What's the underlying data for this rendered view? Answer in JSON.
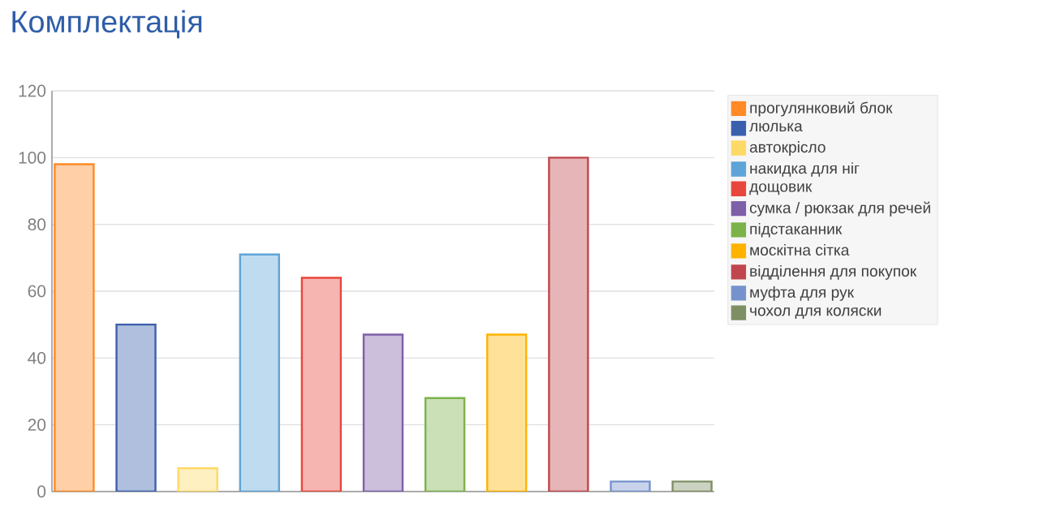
{
  "chart_data": {
    "type": "bar",
    "title": "Комплектація",
    "categories": [
      null,
      null,
      null,
      null,
      null,
      null,
      null,
      null,
      null,
      null,
      null
    ],
    "series": [
      {
        "name": "прогулянковий блок",
        "color": "#ff8a26",
        "values": [
          98,
          null,
          null,
          null,
          null,
          null,
          null,
          null,
          null,
          null,
          null
        ]
      },
      {
        "name": "люлька",
        "color": "#3a5fad",
        "values": [
          null,
          50,
          null,
          null,
          null,
          null,
          null,
          null,
          null,
          null,
          null
        ]
      },
      {
        "name": "автокрісло",
        "color": "#ffd966",
        "values": [
          null,
          null,
          7,
          null,
          null,
          null,
          null,
          null,
          null,
          null,
          null
        ]
      },
      {
        "name": "накидка для ніг",
        "color": "#5fa4d8",
        "values": [
          null,
          null,
          null,
          71,
          null,
          null,
          null,
          null,
          null,
          null,
          null
        ]
      },
      {
        "name": "дощовик",
        "color": "#e8473c",
        "values": [
          null,
          null,
          null,
          null,
          64,
          null,
          null,
          null,
          null,
          null,
          null
        ]
      },
      {
        "name": "сумка / рюкзак для речей",
        "color": "#7d60a8",
        "values": [
          null,
          null,
          null,
          null,
          null,
          47,
          null,
          null,
          null,
          null,
          null
        ]
      },
      {
        "name": "підстаканник",
        "color": "#7cb24a",
        "values": [
          null,
          null,
          null,
          null,
          null,
          null,
          28,
          null,
          null,
          null,
          null
        ]
      },
      {
        "name": "москітна сітка",
        "color": "#ffb300",
        "values": [
          null,
          null,
          null,
          null,
          null,
          null,
          null,
          47,
          null,
          null,
          null
        ]
      },
      {
        "name": "відділення для покупок",
        "color": "#c0464d",
        "values": [
          null,
          null,
          null,
          null,
          null,
          null,
          null,
          null,
          100,
          null,
          null
        ]
      },
      {
        "name": "муфта для рук",
        "color": "#7592cc",
        "values": [
          null,
          null,
          null,
          null,
          null,
          null,
          null,
          null,
          null,
          3,
          null
        ]
      },
      {
        "name": "чохол для коляски",
        "color": "#7f8f65",
        "values": [
          null,
          null,
          null,
          null,
          null,
          null,
          null,
          null,
          null,
          null,
          3
        ]
      }
    ],
    "ylim": [
      0,
      120
    ],
    "yticks": [
      0,
      20,
      40,
      60,
      80,
      100,
      120
    ],
    "grid": "y",
    "legend": "right"
  }
}
